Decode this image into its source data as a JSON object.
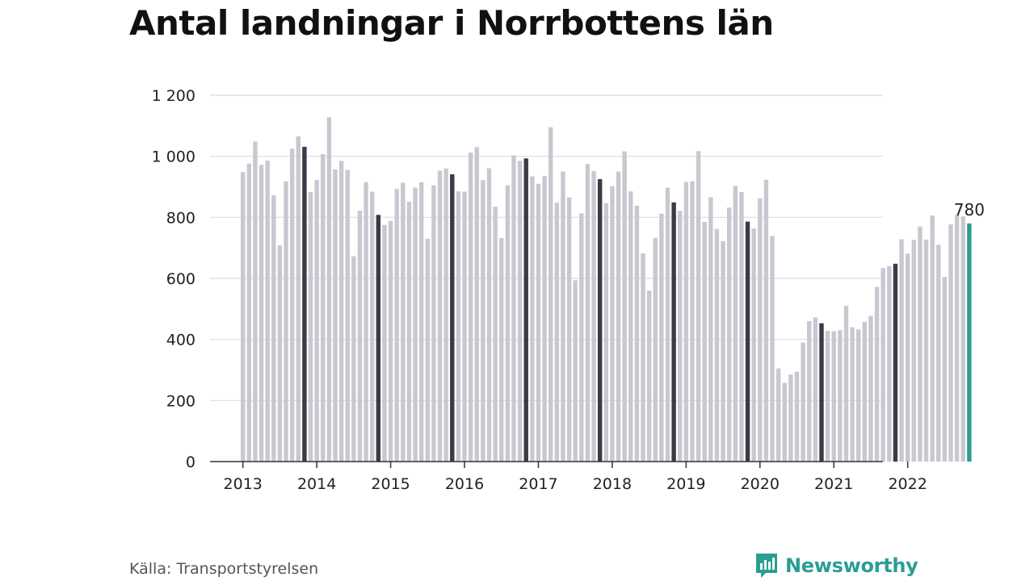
{
  "title": "Antal landningar i Norrbottens län",
  "source": "Källa: Transportstyrelsen",
  "brand": {
    "name": "Newsworthy",
    "icon": "newsworthy-logo-icon",
    "color": "#2a9d94"
  },
  "colors": {
    "bar": "#c8c8d0",
    "highlight": "#3a3a48",
    "latest": "#2a9d94",
    "grid": "#dcdce2",
    "axis": "#333333"
  },
  "chart_data": {
    "type": "bar",
    "title": "Antal landningar i Norrbottens län",
    "xlabel": "",
    "ylabel": "",
    "ylim": [
      0,
      1200
    ],
    "yticks": [
      0,
      200,
      400,
      600,
      800,
      1000,
      1200
    ],
    "ytick_labels": [
      "0",
      "200",
      "400",
      "600",
      "800",
      "1 000",
      "1 200"
    ],
    "x_labels": [
      "2013",
      "2014",
      "2015",
      "2016",
      "2017",
      "2018",
      "2019",
      "2020",
      "2021",
      "2022"
    ],
    "highlight_month": "November",
    "latest_label": "780",
    "series": [
      {
        "year": "2013",
        "values": [
          948,
          976,
          1048,
          972,
          986,
          872,
          708,
          918,
          1025,
          1065,
          1031,
          883
        ]
      },
      {
        "year": "2014",
        "values": [
          922,
          1007,
          1128,
          957,
          985,
          955,
          673,
          822,
          915,
          884,
          808,
          775
        ]
      },
      {
        "year": "2015",
        "values": [
          788,
          893,
          913,
          851,
          897,
          915,
          730,
          905,
          953,
          960,
          941,
          885
        ]
      },
      {
        "year": "2016",
        "values": [
          884,
          1012,
          1030,
          922,
          961,
          835,
          732,
          905,
          1003,
          985,
          993,
          934
        ]
      },
      {
        "year": "2017",
        "values": [
          910,
          935,
          1095,
          848,
          950,
          865,
          594,
          813,
          975,
          952,
          925,
          847
        ]
      },
      {
        "year": "2018",
        "values": [
          902,
          950,
          1016,
          885,
          838,
          682,
          560,
          733,
          812,
          897,
          849,
          821
        ]
      },
      {
        "year": "2019",
        "values": [
          916,
          918,
          1017,
          785,
          866,
          762,
          722,
          832,
          903,
          883,
          786,
          763
        ]
      },
      {
        "year": "2020",
        "values": [
          862,
          923,
          739,
          305,
          258,
          285,
          294,
          390,
          460,
          472,
          453,
          428
        ]
      },
      {
        "year": "2021",
        "values": [
          427,
          430,
          510,
          440,
          433,
          458,
          477,
          572,
          634,
          640,
          648,
          728
        ]
      },
      {
        "year": "2022",
        "values": [
          681,
          726,
          770,
          727,
          806,
          710,
          605,
          777,
          808,
          803,
          780
        ]
      }
    ]
  }
}
